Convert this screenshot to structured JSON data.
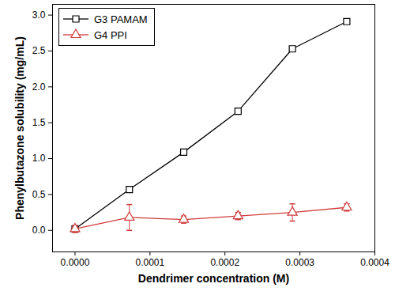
{
  "chart_data": {
    "type": "line",
    "x_label": "Dendrimer concentration (M)",
    "y_label": "Phenylbutazone solubility (mg/mL)",
    "x": [
      0,
      7.25e-05,
      0.000145,
      0.0002175,
      0.00029,
      0.0003625
    ],
    "series": [
      {
        "name": "G3 PAMAM",
        "color": "#000000",
        "marker": "square",
        "line_style": "solid",
        "values": [
          0.02,
          0.57,
          1.09,
          1.66,
          2.53,
          2.91
        ],
        "errors": [
          0.02,
          0.03,
          0.03,
          0.03,
          0.03,
          0.03
        ]
      },
      {
        "name": "G4 PPI",
        "color": "#d03c3c",
        "marker": "triangle",
        "line_style": "solid",
        "values": [
          0.02,
          0.18,
          0.15,
          0.2,
          0.25,
          0.32
        ],
        "errors": [
          0.05,
          0.18,
          0.05,
          0.05,
          0.12,
          0.05
        ]
      }
    ],
    "xlim": [
      -3e-05,
      0.0004
    ],
    "xticks": [
      {
        "value": 0,
        "label": "0.0000"
      },
      {
        "value": 0.0001,
        "label": "0.0001"
      },
      {
        "value": 0.0002,
        "label": "0.0002"
      },
      {
        "value": 0.0003,
        "label": "0.0003"
      },
      {
        "value": 0.0004,
        "label": "0.0004"
      }
    ],
    "ylim": [
      -0.3,
      3.15
    ],
    "yticks": [
      {
        "value": 0,
        "label": "0.0"
      },
      {
        "value": 0.5,
        "label": "0.5"
      },
      {
        "value": 1,
        "label": "1.0"
      },
      {
        "value": 1.5,
        "label": "1.5"
      },
      {
        "value": 2,
        "label": "2.0"
      },
      {
        "value": 2.5,
        "label": "2.5"
      },
      {
        "value": 3,
        "label": "3.0"
      }
    ],
    "grid": false,
    "legend": "upper left"
  }
}
